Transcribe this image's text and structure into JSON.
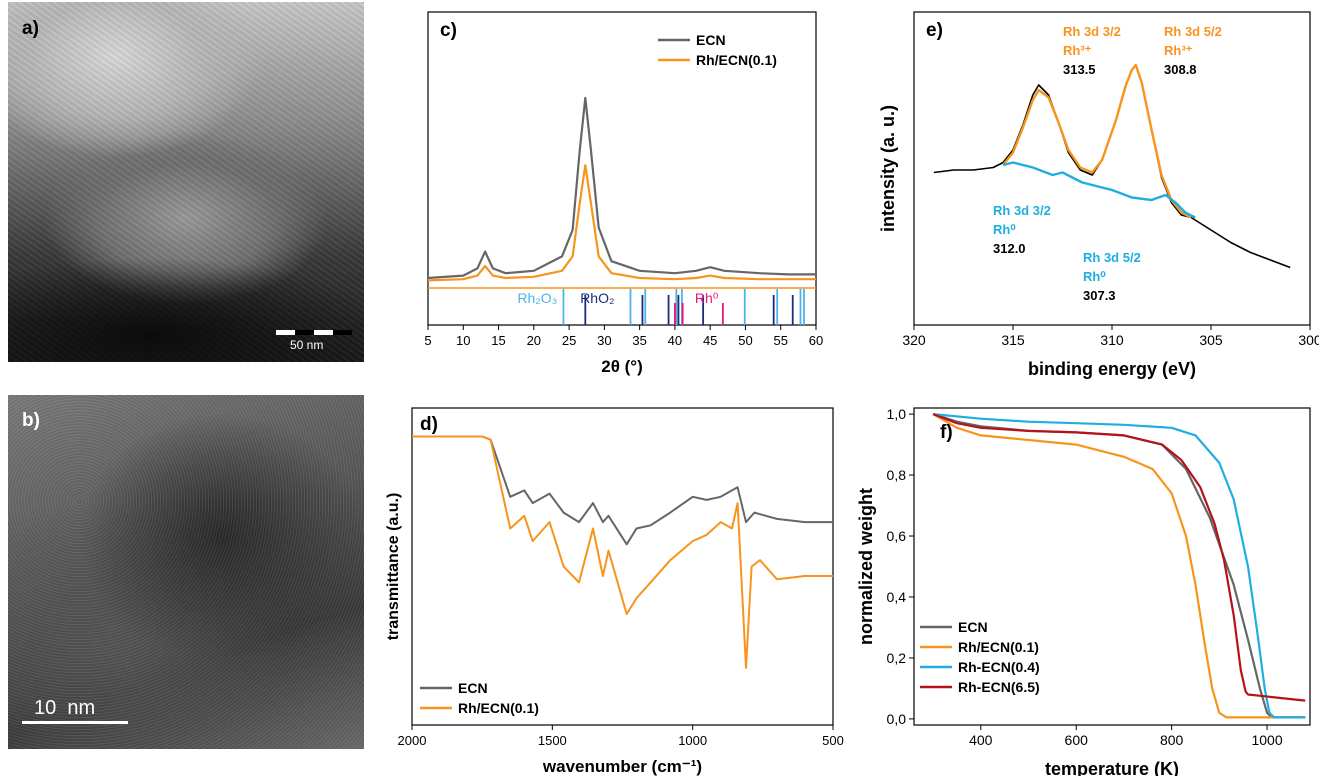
{
  "panels": {
    "a": {
      "label": "a)",
      "scalebar": "50 nm"
    },
    "b": {
      "label": "b)",
      "scalebar": "10  nm"
    }
  },
  "colors": {
    "ecn": "#666666",
    "rh01": "#f7941d",
    "rh04": "#1eaee0",
    "rh65": "#b5121b",
    "raw": "#000000",
    "rh2o3": "#4fb3e8",
    "rho2": "#1c2a7a",
    "rh0": "#e6187a"
  },
  "chart_data": [
    {
      "id": "c",
      "type": "line",
      "panel_label": "c)",
      "xlabel": "2θ (°)",
      "ylabel": "",
      "xlim": [
        5,
        60
      ],
      "ylim": [
        0,
        100
      ],
      "xticks": [
        5,
        10,
        15,
        20,
        25,
        30,
        35,
        40,
        45,
        50,
        55,
        60
      ],
      "legend": "top-right",
      "series": [
        {
          "name": "ECN",
          "color": "#666666",
          "x": [
            5,
            10,
            12,
            13.1,
            14.2,
            16,
            20,
            24,
            25.5,
            26.5,
            27.3,
            28.1,
            29.2,
            31,
            35,
            40,
            43,
            45,
            47,
            52,
            56,
            60
          ],
          "y": [
            5,
            6,
            9,
            16,
            9,
            7,
            8,
            14,
            25,
            58,
            80,
            58,
            26,
            12,
            8,
            7,
            8,
            9.5,
            8,
            7,
            6.5,
            6.5
          ]
        },
        {
          "name": "Rh/ECN(0.1)",
          "color": "#f7941d",
          "x": [
            5,
            10,
            12,
            13.1,
            14.2,
            16,
            20,
            24,
            25.5,
            26.5,
            27.3,
            28.1,
            29.2,
            31,
            35,
            40,
            43,
            45,
            47,
            52,
            56,
            60
          ],
          "y": [
            4,
            4.5,
            6,
            10,
            6,
            5,
            5.5,
            8,
            14,
            36,
            52,
            36,
            14,
            7,
            5,
            4.5,
            5,
            6,
            5,
            4.5,
            4.5,
            4.5
          ]
        }
      ],
      "reference_labels": [
        {
          "text": "Rh₂O₃",
          "color": "#4fb3e8",
          "x": 20.5
        },
        {
          "text": "RhO₂",
          "color": "#1c2a7a",
          "x": 29
        },
        {
          "text": "Rh⁰",
          "color": "#e6187a",
          "x": 44.5
        }
      ],
      "reference_lines": [
        {
          "phase": "Rh₂O₃",
          "color": "#4fb3e8",
          "positions": [
            24.2,
            33.7,
            35.8,
            40.2,
            41.0,
            49.9,
            54.5,
            57.8,
            58.3
          ]
        },
        {
          "phase": "RhO₂",
          "color": "#1c2a7a",
          "positions": [
            27.3,
            35.4,
            39.1,
            40.5,
            44.0,
            54.0,
            56.7
          ]
        },
        {
          "phase": "Rh⁰",
          "color": "#e6187a",
          "positions": [
            40.0,
            41.1,
            46.8
          ]
        }
      ]
    },
    {
      "id": "d",
      "type": "line",
      "panel_label": "d)",
      "xlabel": "wavenumber (cm⁻¹)",
      "ylabel": "transmittance (a.u.)",
      "xlim": [
        2000,
        500
      ],
      "ylim": [
        0,
        100
      ],
      "xticks": [
        2000,
        1500,
        1000,
        500
      ],
      "legend": "bottom-left",
      "series": [
        {
          "name": "ECN",
          "color": "#666666",
          "x": [
            2000,
            1900,
            1750,
            1720,
            1650,
            1600,
            1570,
            1510,
            1460,
            1405,
            1355,
            1320,
            1300,
            1235,
            1200,
            1150,
            1080,
            1000,
            950,
            900,
            860,
            840,
            810,
            780,
            700,
            600,
            500
          ],
          "y": [
            91,
            91,
            91,
            90,
            72,
            74,
            70,
            73,
            67,
            64,
            70,
            64,
            66,
            57,
            62,
            63,
            67,
            72,
            71,
            72,
            74,
            75,
            64,
            67,
            65,
            64,
            64
          ]
        },
        {
          "name": "Rh/ECN(0.1)",
          "color": "#f7941d",
          "x": [
            2000,
            1900,
            1750,
            1720,
            1650,
            1600,
            1570,
            1510,
            1460,
            1405,
            1355,
            1320,
            1300,
            1235,
            1200,
            1150,
            1080,
            1000,
            950,
            900,
            860,
            840,
            810,
            790,
            760,
            700,
            600,
            500
          ],
          "y": [
            91,
            91,
            91,
            90,
            62,
            66,
            58,
            64,
            50,
            45,
            62,
            47,
            55,
            35,
            40,
            45,
            52,
            58,
            60,
            64,
            62,
            70,
            18,
            50,
            52,
            46,
            47,
            47
          ]
        }
      ]
    },
    {
      "id": "e",
      "type": "line",
      "panel_label": "e)",
      "xlabel": "binding energy (eV)",
      "ylabel": "intensity (a. u.)",
      "xlim": [
        320,
        300
      ],
      "ylim": [
        0,
        100
      ],
      "xticks": [
        320,
        315,
        310,
        305,
        300
      ],
      "series": [
        {
          "name": "",
          "color": "#000000",
          "x": [
            319,
            318,
            317,
            316,
            315.5,
            315,
            314.5,
            314,
            313.7,
            313.2,
            312.7,
            312.2,
            311.6,
            311,
            310.5,
            309.8,
            309.3,
            309,
            308.8,
            308.5,
            308,
            307.5,
            307,
            306.5,
            306,
            305,
            304,
            303,
            302,
            301
          ],
          "y": [
            47,
            48,
            48,
            49,
            51,
            56,
            66,
            78,
            82,
            78,
            67,
            55,
            48,
            46,
            52,
            68,
            82,
            88,
            90,
            83,
            64,
            45,
            35,
            30,
            29,
            24,
            19,
            15,
            12,
            9
          ]
        },
        {
          "name": "",
          "color": "#f7941d",
          "x": [
            315.5,
            315,
            314.5,
            314,
            313.7,
            313.2,
            312.7,
            312.2,
            311.6,
            311,
            310.5,
            309.8,
            309.3,
            309,
            308.8,
            308.5,
            308,
            307.5,
            307,
            306.5,
            306
          ],
          "y": [
            50,
            55,
            65,
            76,
            80,
            77,
            67,
            56,
            49,
            47,
            52,
            68,
            82,
            88,
            90,
            83,
            64,
            46,
            36,
            31,
            29
          ]
        },
        {
          "name": "",
          "color": "#1eaee0",
          "x": [
            315.5,
            315,
            314,
            313,
            312.5,
            312,
            311.5,
            311,
            310,
            309,
            308,
            307.3,
            306.8,
            306.3,
            305.8
          ],
          "y": [
            50,
            51,
            49,
            46,
            47,
            45,
            43,
            42,
            40,
            37,
            36,
            38,
            35,
            31,
            29
          ]
        }
      ],
      "annotations": [
        {
          "title": "Rh 3d 3/2",
          "species": "Rh³⁺",
          "value": "313.5",
          "color": "#f7941d",
          "x": 313.5
        },
        {
          "title": "Rh 3d 5/2",
          "species": "Rh³⁺",
          "value": "308.8",
          "color": "#f7941d",
          "x": 308.8
        },
        {
          "title": "Rh 3d 3/2",
          "species": "Rh⁰",
          "value": "312.0",
          "color": "#1eaee0",
          "x": 312.0
        },
        {
          "title": "Rh 3d 5/2",
          "species": "Rh⁰",
          "value": "307.3",
          "color": "#1eaee0",
          "x": 307.3
        }
      ]
    },
    {
      "id": "f",
      "type": "line",
      "panel_label": "f)",
      "xlabel": "temperature (K)",
      "ylabel": "normalized weight",
      "xlim": [
        260,
        1090
      ],
      "ylim": [
        -0.02,
        1.02
      ],
      "xticks": [
        400,
        600,
        800,
        1000
      ],
      "yticks": [
        "0,0",
        "0,2",
        "0,4",
        "0,6",
        "0,8",
        "1,0"
      ],
      "yticks_values": [
        0,
        0.2,
        0.4,
        0.6,
        0.8,
        1.0
      ],
      "legend": "bottom-left",
      "series": [
        {
          "name": "ECN",
          "color": "#666666",
          "x": [
            300,
            350,
            400,
            500,
            600,
            700,
            780,
            830,
            880,
            930,
            960,
            985,
            1000,
            1010,
            1080
          ],
          "y": [
            1.0,
            0.975,
            0.96,
            0.945,
            0.94,
            0.93,
            0.9,
            0.82,
            0.66,
            0.44,
            0.26,
            0.1,
            0.02,
            0.005,
            0.005
          ]
        },
        {
          "name": "Rh/ECN(0.1)",
          "color": "#f7941d",
          "x": [
            300,
            350,
            400,
            500,
            600,
            700,
            760,
            800,
            830,
            850,
            870,
            885,
            900,
            915,
            1080
          ],
          "y": [
            1.0,
            0.955,
            0.93,
            0.915,
            0.9,
            0.86,
            0.82,
            0.74,
            0.6,
            0.44,
            0.24,
            0.1,
            0.02,
            0.005,
            0.005
          ]
        },
        {
          "name": "Rh-ECN(0.4)",
          "color": "#1eaee0",
          "x": [
            300,
            400,
            500,
            600,
            700,
            800,
            850,
            900,
            930,
            960,
            980,
            995,
            1005,
            1015,
            1080
          ],
          "y": [
            1.0,
            0.985,
            0.975,
            0.97,
            0.965,
            0.955,
            0.93,
            0.84,
            0.72,
            0.5,
            0.28,
            0.1,
            0.02,
            0.005,
            0.005
          ]
        },
        {
          "name": "Rh-ECN(6.5)",
          "color": "#b5121b",
          "x": [
            300,
            350,
            400,
            500,
            600,
            700,
            780,
            820,
            860,
            890,
            910,
            930,
            945,
            955,
            960,
            1080
          ],
          "y": [
            1.0,
            0.97,
            0.955,
            0.945,
            0.94,
            0.93,
            0.9,
            0.85,
            0.76,
            0.64,
            0.52,
            0.34,
            0.16,
            0.09,
            0.08,
            0.06
          ]
        }
      ]
    }
  ]
}
